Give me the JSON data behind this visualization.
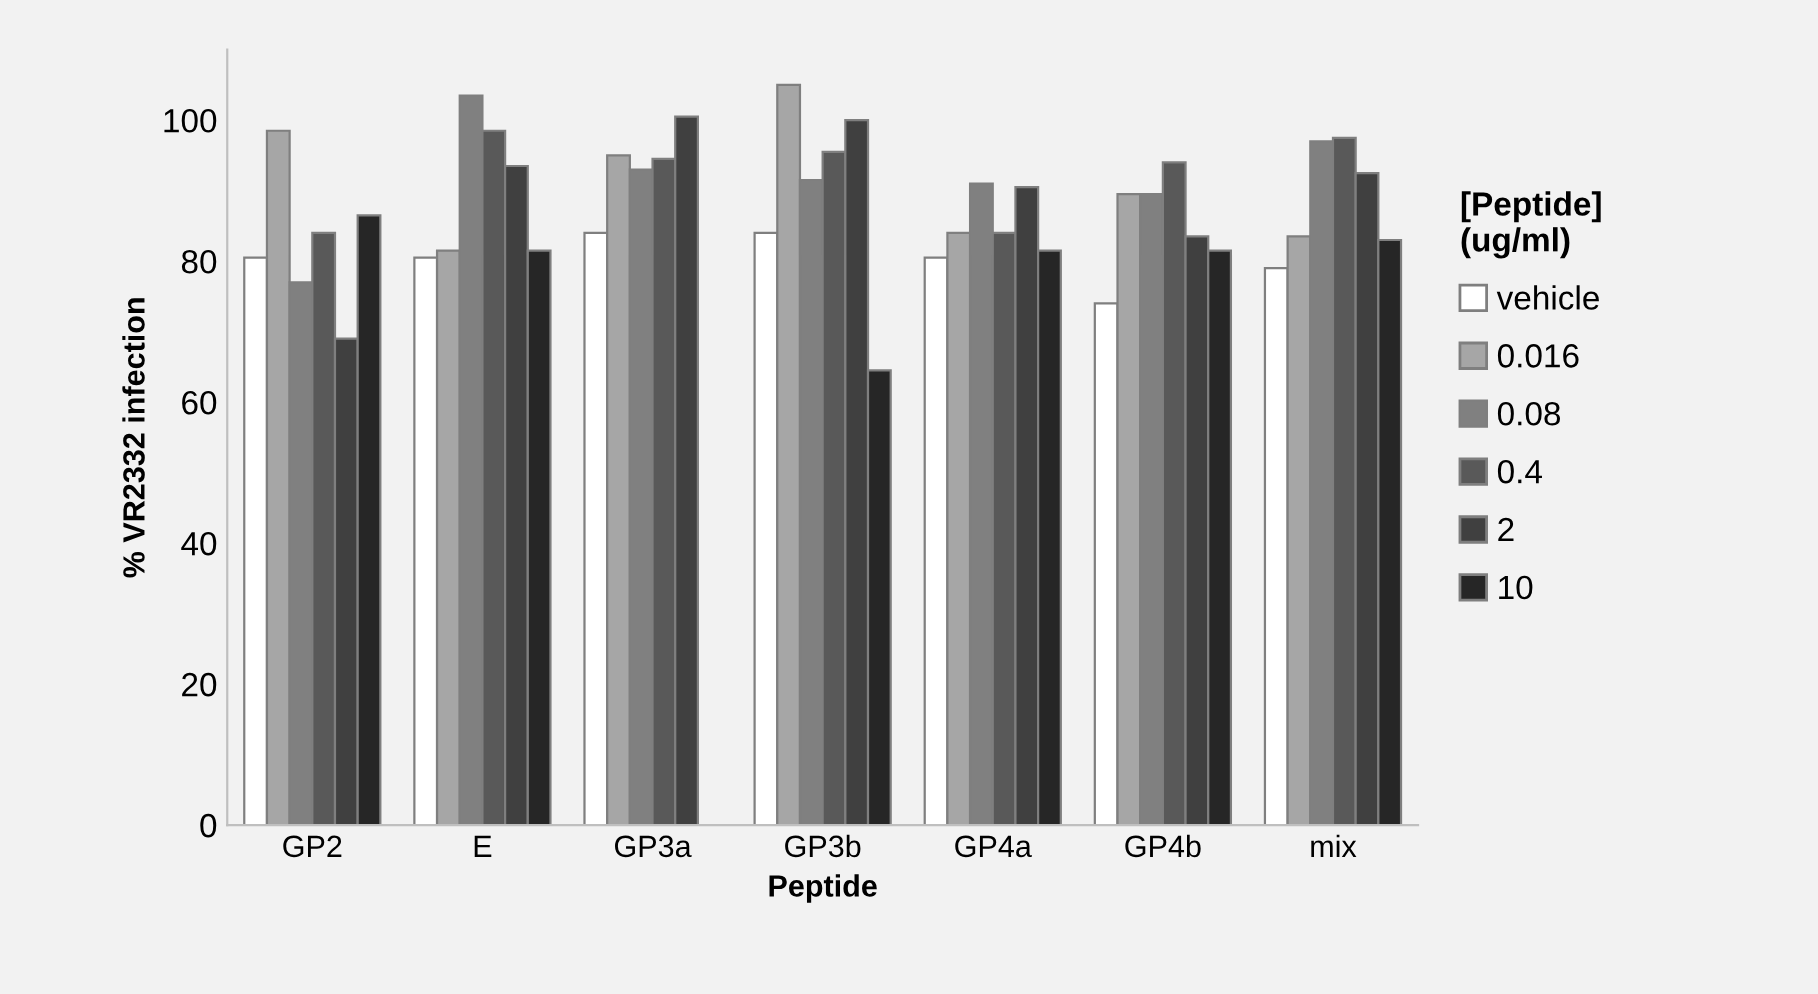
{
  "chart_data": {
    "type": "bar",
    "xlabel": "Peptide",
    "ylabel": "% VR2332 infection",
    "legend_title": "[Peptide]\n(ug/ml)",
    "categories": [
      "GP2",
      "E",
      "GP3a",
      "GP3b",
      "GP4a",
      "GP4b",
      "mix"
    ],
    "series": [
      {
        "name": "vehicle",
        "color": "#ffffff",
        "values": [
          80.5,
          80.5,
          84,
          84,
          80.5,
          74,
          79
        ]
      },
      {
        "name": "0.016",
        "color": "#a6a6a6",
        "values": [
          98.5,
          81.5,
          95,
          105,
          84,
          89.5,
          83.5
        ]
      },
      {
        "name": "0.08",
        "color": "#808080",
        "values": [
          77,
          103.5,
          93,
          91.5,
          91,
          89.5,
          97
        ]
      },
      {
        "name": "0.4",
        "color": "#595959",
        "values": [
          84,
          98.5,
          94.5,
          95.5,
          84,
          94,
          97.5
        ]
      },
      {
        "name": "2",
        "color": "#404040",
        "values": [
          69,
          93.5,
          100.5,
          100,
          90.5,
          83.5,
          92.5
        ]
      },
      {
        "name": "10",
        "color": "#262626",
        "values": [
          86.5,
          81.5,
          null,
          64.5,
          81.5,
          81.5,
          83
        ]
      }
    ],
    "ylim": [
      0,
      110
    ],
    "yticks": [
      0,
      20,
      40,
      60,
      80,
      100
    ],
    "grid": false,
    "legend": "right"
  }
}
